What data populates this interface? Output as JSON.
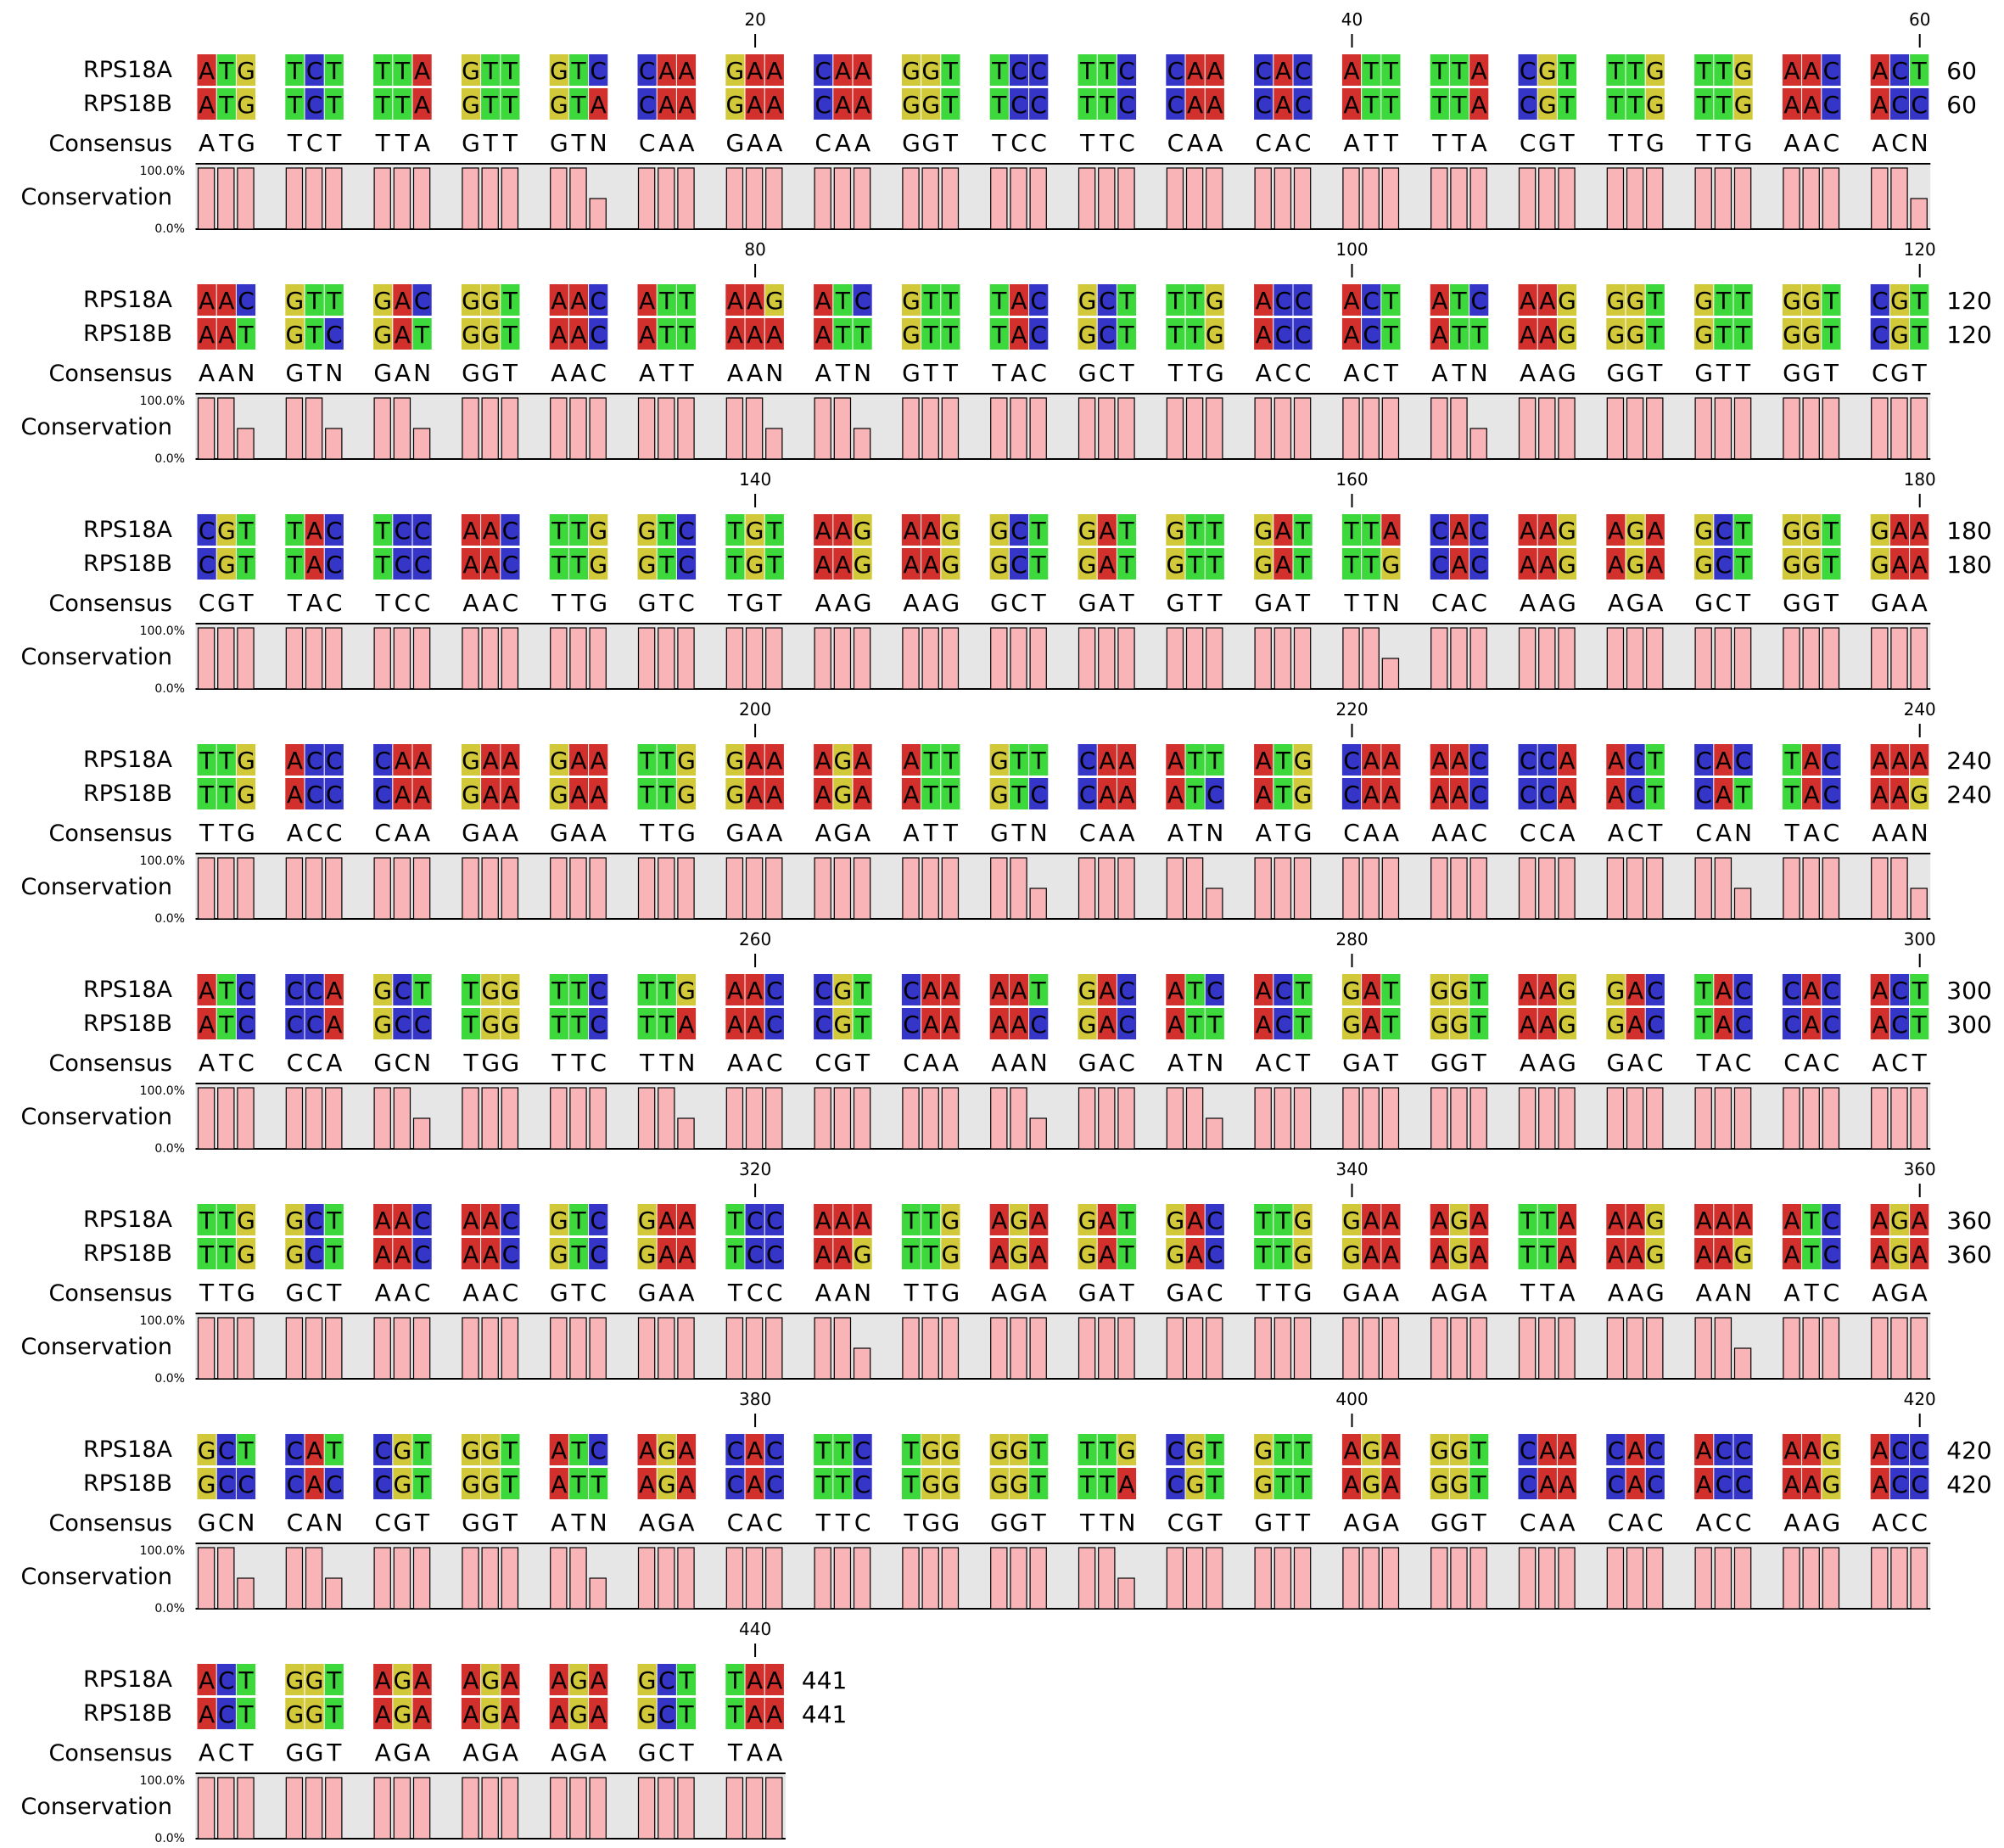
{
  "sequences": [
    {
      "name": "RPS18A",
      "seq": "ATGTCTTTAGTTGTCCAAGAACAAGGTTCCTTCCAACACATTTTACGTTTGTTGAACACTAACGTTGACGGTAACATTAAGATCGTTTACGCTTTGACCACTATCAAGGGTGTTGGTCGTCGTTACTCCAACTTGGTCTGTAAGAAGGCTGATGTTGATTTACACAAGAGAGCTGGTGAATTGACCCAAGAAGAATTGGAAAGAATTGTTCAAATTATGCAAAACCCAACTCACTACAAAATCCCAGCTTGGTTCTTGAACCGTCAAAATGACATCACTGATGGTAAGGACTACCACACTTTGGCTAACAACGTCGAATCCAAATTGAGAGATGACTTGGAAAGATTAAAGAAAATCAGAGCTCATCGTGGTATCAGACACTTCTGGGGTTTGCGTGTTAGAGGTCAACACACCAAGACCACTGGTAGAAGAAGAGCTTAA"
    },
    {
      "name": "RPS18B",
      "seq": "ATGTCTTTAGTTGTACAAGAACAAGGTTCCTTCCAACACATTTTACGTTTGTTGAACACCAATGTCGATGGTAACATTAAAATTGTTTACGCTTTGACCACTATTAAGGGTGTTGGTCGTCGTTACTCCAACTTGGTCTGTAAGAAGGCTGATGTTGATTTGCACAAGAGAGCTGGTGAATTGACCCAAGAAGAATTGGAAAGAATTGTCCAAATCATGCAAAACCCAACTCATTACAAGATCCCAGCCTGGTTCTTAAACCGTCAAAACGACATTACTGATGGTAAGGACTACCACACTTTGGCTAACAACGTCGAATCCAAGTTGAGAGATGACTTGGAAAGATTAAAGAAGATCAGAGCCCACCGTGGTATTAGACACTTCTGGGGTTTACGTGTTAGAGGTCAACACACCAAGACCACTGGTAGAAGAAGAGCTTAA"
    }
  ],
  "consensus_label": "Consensus",
  "conservation_label": "Conservation",
  "conservation_max_label": "100.0%",
  "conservation_min_label": "0.0%",
  "total_length": 441,
  "bases_per_row": 60,
  "ruler_interval": 20,
  "base_colors": {
    "A": "#d2302d",
    "C": "#3535c8",
    "G": "#d2c93a",
    "T": "#3cd83c"
  },
  "conservation_bar_color": "#f8b4b7",
  "conservation_bg_color": "#e6e6e6"
}
